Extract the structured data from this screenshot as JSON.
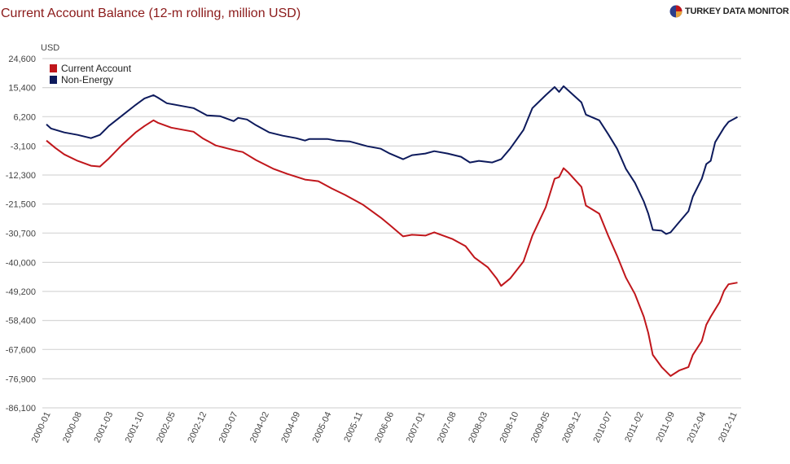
{
  "header": {
    "title": "Current Account Balance (12-m rolling, million USD)",
    "logo_text": "TURKEY DATA MONITOR"
  },
  "chart_data": {
    "type": "line",
    "title": "Current Account Balance (12-m rolling, million USD)",
    "ylabel": "USD",
    "xlabel": "",
    "x_unit": "months since 2000-01",
    "ylim": [
      -86100,
      24600
    ],
    "y_ticks": [
      24600,
      15400,
      6200,
      -3100,
      -12300,
      -21500,
      -30700,
      -40000,
      -49200,
      -58400,
      -67600,
      -76900,
      -86100
    ],
    "y_tick_labels": [
      "24,600",
      "15,400",
      "6,200",
      "-3,100",
      "-12,300",
      "-21,500",
      "-30,700",
      "-40,000",
      "-49,200",
      "-58,400",
      "-67,600",
      "-76,900",
      "-86,100"
    ],
    "x_tick_labels": [
      "2000-01",
      "2000-08",
      "2001-03",
      "2001-10",
      "2002-05",
      "2002-12",
      "2003-07",
      "2004-02",
      "2004-09",
      "2005-04",
      "2005-11",
      "2006-06",
      "2007-01",
      "2007-08",
      "2008-03",
      "2008-10",
      "2009-05",
      "2009-12",
      "2010-07",
      "2011-02",
      "2011-09",
      "2012-04",
      "2012-11"
    ],
    "x_tick_step_months": 7,
    "grid": true,
    "legend_position": "top-left",
    "series": [
      {
        "name": "Current Account",
        "color": "#c0161b",
        "points": [
          [
            0,
            -1390
          ],
          [
            2,
            -3700
          ],
          [
            4,
            -5760
          ],
          [
            7,
            -7820
          ],
          [
            10,
            -9360
          ],
          [
            12,
            -9620
          ],
          [
            14,
            -7050
          ],
          [
            17,
            -2670
          ],
          [
            20,
            1190
          ],
          [
            22,
            3240
          ],
          [
            24,
            5040
          ],
          [
            25,
            4270
          ],
          [
            28,
            2730
          ],
          [
            33,
            1440
          ],
          [
            35,
            -620
          ],
          [
            38,
            -2930
          ],
          [
            43,
            -4730
          ],
          [
            44,
            -4990
          ],
          [
            47,
            -7560
          ],
          [
            51,
            -10390
          ],
          [
            54,
            -11940
          ],
          [
            58,
            -13740
          ],
          [
            61,
            -14250
          ],
          [
            64,
            -16570
          ],
          [
            67,
            -18630
          ],
          [
            71,
            -21710
          ],
          [
            75,
            -25830
          ],
          [
            77,
            -28150
          ],
          [
            80,
            -31750
          ],
          [
            82,
            -31240
          ],
          [
            85,
            -31490
          ],
          [
            87,
            -30460
          ],
          [
            91,
            -32520
          ],
          [
            94,
            -34840
          ],
          [
            96,
            -38440
          ],
          [
            99,
            -41530
          ],
          [
            101,
            -45130
          ],
          [
            102,
            -47440
          ],
          [
            104,
            -45130
          ],
          [
            107,
            -39730
          ],
          [
            109,
            -31490
          ],
          [
            112,
            -22490
          ],
          [
            114,
            -13480
          ],
          [
            115,
            -12970
          ],
          [
            116,
            -10140
          ],
          [
            117,
            -11430
          ],
          [
            120,
            -16060
          ],
          [
            121,
            -21970
          ],
          [
            124,
            -24550
          ],
          [
            126,
            -31490
          ],
          [
            128,
            -37930
          ],
          [
            130,
            -44870
          ],
          [
            132,
            -50020
          ],
          [
            134,
            -57220
          ],
          [
            135,
            -62370
          ],
          [
            136,
            -69310
          ],
          [
            138,
            -73170
          ],
          [
            140,
            -76000
          ],
          [
            142,
            -74200
          ],
          [
            144,
            -73170
          ],
          [
            145,
            -69310
          ],
          [
            147,
            -64940
          ],
          [
            148,
            -59790
          ],
          [
            149,
            -57220
          ],
          [
            151,
            -52590
          ],
          [
            152,
            -48990
          ],
          [
            153,
            -46930
          ],
          [
            155,
            -46410
          ]
        ]
      },
      {
        "name": "Non-Energy",
        "color": "#0d1a5c",
        "points": [
          [
            0,
            3760
          ],
          [
            1,
            2470
          ],
          [
            4,
            1190
          ],
          [
            7,
            420
          ],
          [
            10,
            -620
          ],
          [
            12,
            420
          ],
          [
            14,
            3240
          ],
          [
            17,
            6580
          ],
          [
            20,
            9930
          ],
          [
            22,
            11990
          ],
          [
            24,
            13020
          ],
          [
            25,
            12250
          ],
          [
            27,
            10450
          ],
          [
            31,
            9420
          ],
          [
            33,
            8900
          ],
          [
            36,
            6580
          ],
          [
            39,
            6330
          ],
          [
            42,
            4790
          ],
          [
            43,
            5810
          ],
          [
            45,
            5300
          ],
          [
            47,
            3500
          ],
          [
            50,
            1190
          ],
          [
            53,
            160
          ],
          [
            56,
            -620
          ],
          [
            58,
            -1390
          ],
          [
            59,
            -880
          ],
          [
            63,
            -880
          ],
          [
            65,
            -1390
          ],
          [
            68,
            -1640
          ],
          [
            72,
            -3190
          ],
          [
            75,
            -3960
          ],
          [
            77,
            -5500
          ],
          [
            80,
            -7300
          ],
          [
            82,
            -6010
          ],
          [
            85,
            -5500
          ],
          [
            87,
            -4730
          ],
          [
            90,
            -5500
          ],
          [
            93,
            -6530
          ],
          [
            95,
            -8330
          ],
          [
            97,
            -7820
          ],
          [
            100,
            -8330
          ],
          [
            102,
            -7300
          ],
          [
            104,
            -3960
          ],
          [
            107,
            1960
          ],
          [
            109,
            8900
          ],
          [
            112,
            13020
          ],
          [
            114,
            15590
          ],
          [
            115,
            14050
          ],
          [
            116,
            15850
          ],
          [
            117,
            14560
          ],
          [
            120,
            10710
          ],
          [
            121,
            6840
          ],
          [
            124,
            5040
          ],
          [
            126,
            670
          ],
          [
            128,
            -3960
          ],
          [
            130,
            -10390
          ],
          [
            132,
            -14770
          ],
          [
            134,
            -20690
          ],
          [
            135,
            -24550
          ],
          [
            136,
            -29690
          ],
          [
            138,
            -29950
          ],
          [
            139,
            -30980
          ],
          [
            140,
            -30460
          ],
          [
            142,
            -27120
          ],
          [
            144,
            -23780
          ],
          [
            145,
            -19140
          ],
          [
            147,
            -13480
          ],
          [
            148,
            -8840
          ],
          [
            149,
            -7820
          ],
          [
            150,
            -1900
          ],
          [
            152,
            2730
          ],
          [
            153,
            4530
          ],
          [
            155,
            6070
          ]
        ]
      }
    ]
  }
}
